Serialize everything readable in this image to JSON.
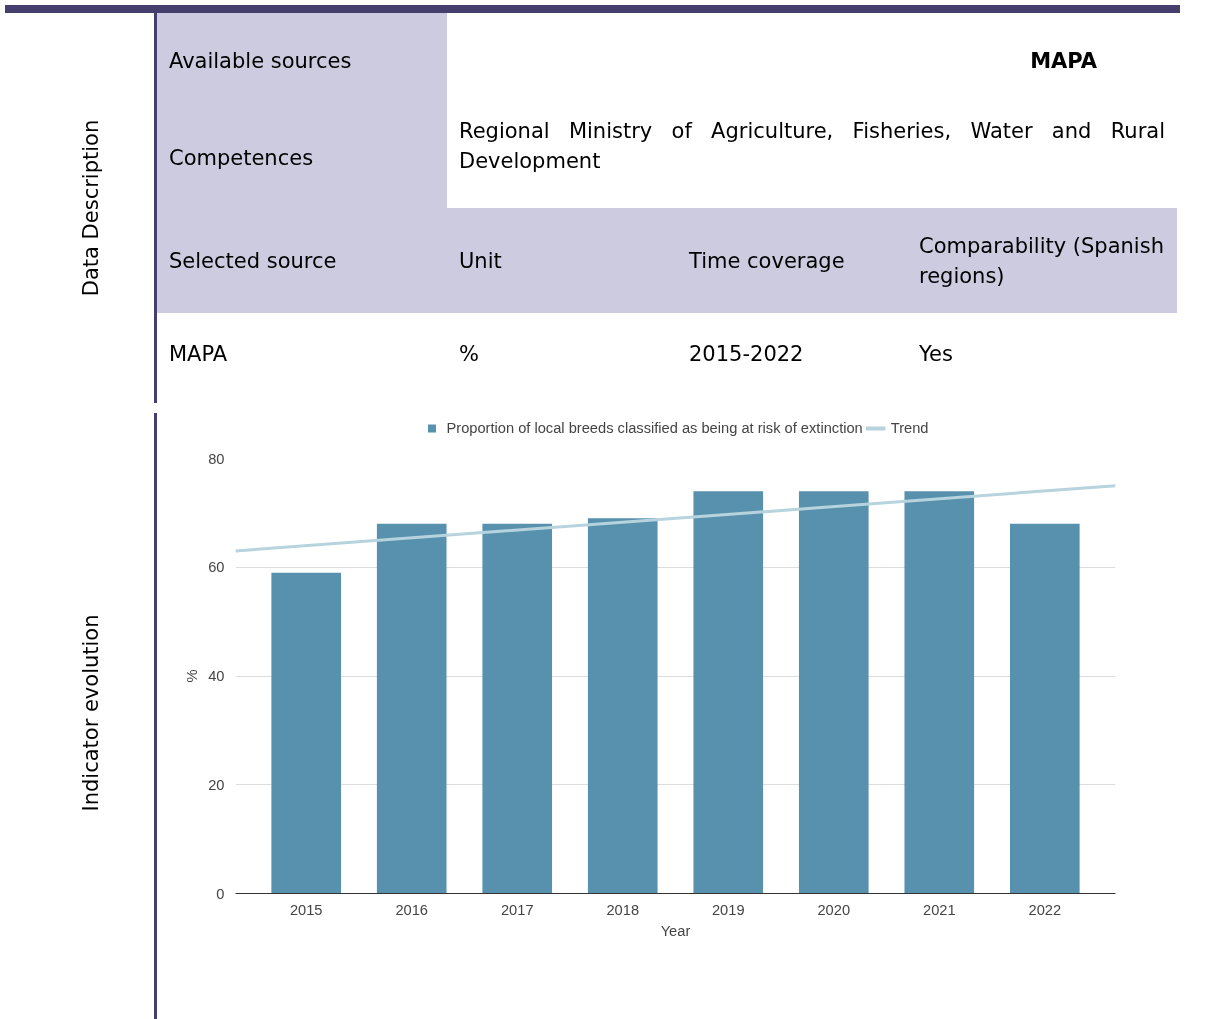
{
  "chart_data": {
    "type": "bar",
    "annotations": [
      "Data Description",
      "Available sources",
      "MAPA",
      "Competences",
      "Regional Ministry of Agriculture, Fisheries, Water and Rural Development",
      "Selected source",
      "Unit",
      "Time coverage",
      "Comparability (Spanish regions)",
      "MAPA",
      "%",
      "2015-2022",
      "Yes",
      "Indicator evolution"
    ],
    "x": [
      2015,
      2016,
      2017,
      2018,
      2019,
      2020,
      2021,
      2022
    ],
    "series": [
      {
        "name": "Proportion of local breeds classified as being at risk of extinction",
        "color": "#5891ae",
        "values": [
          59,
          68,
          68,
          69,
          74,
          74,
          74,
          68
        ]
      },
      {
        "name": "Trend",
        "type": "line",
        "color": "#b7d3de",
        "x": [
          2014.33,
          2022.67
        ],
        "values": [
          63,
          75
        ]
      }
    ],
    "xlabel": "Year",
    "ylabel": "%",
    "xlim": [
      2014.33,
      2022.67
    ],
    "xticks": [
      2015,
      2016,
      2017,
      2018,
      2019,
      2020,
      2021,
      2022
    ],
    "ylim": [
      0,
      80
    ],
    "yticks": [
      0,
      20,
      40,
      60,
      80
    ],
    "grid": "y",
    "legend": "top"
  }
}
